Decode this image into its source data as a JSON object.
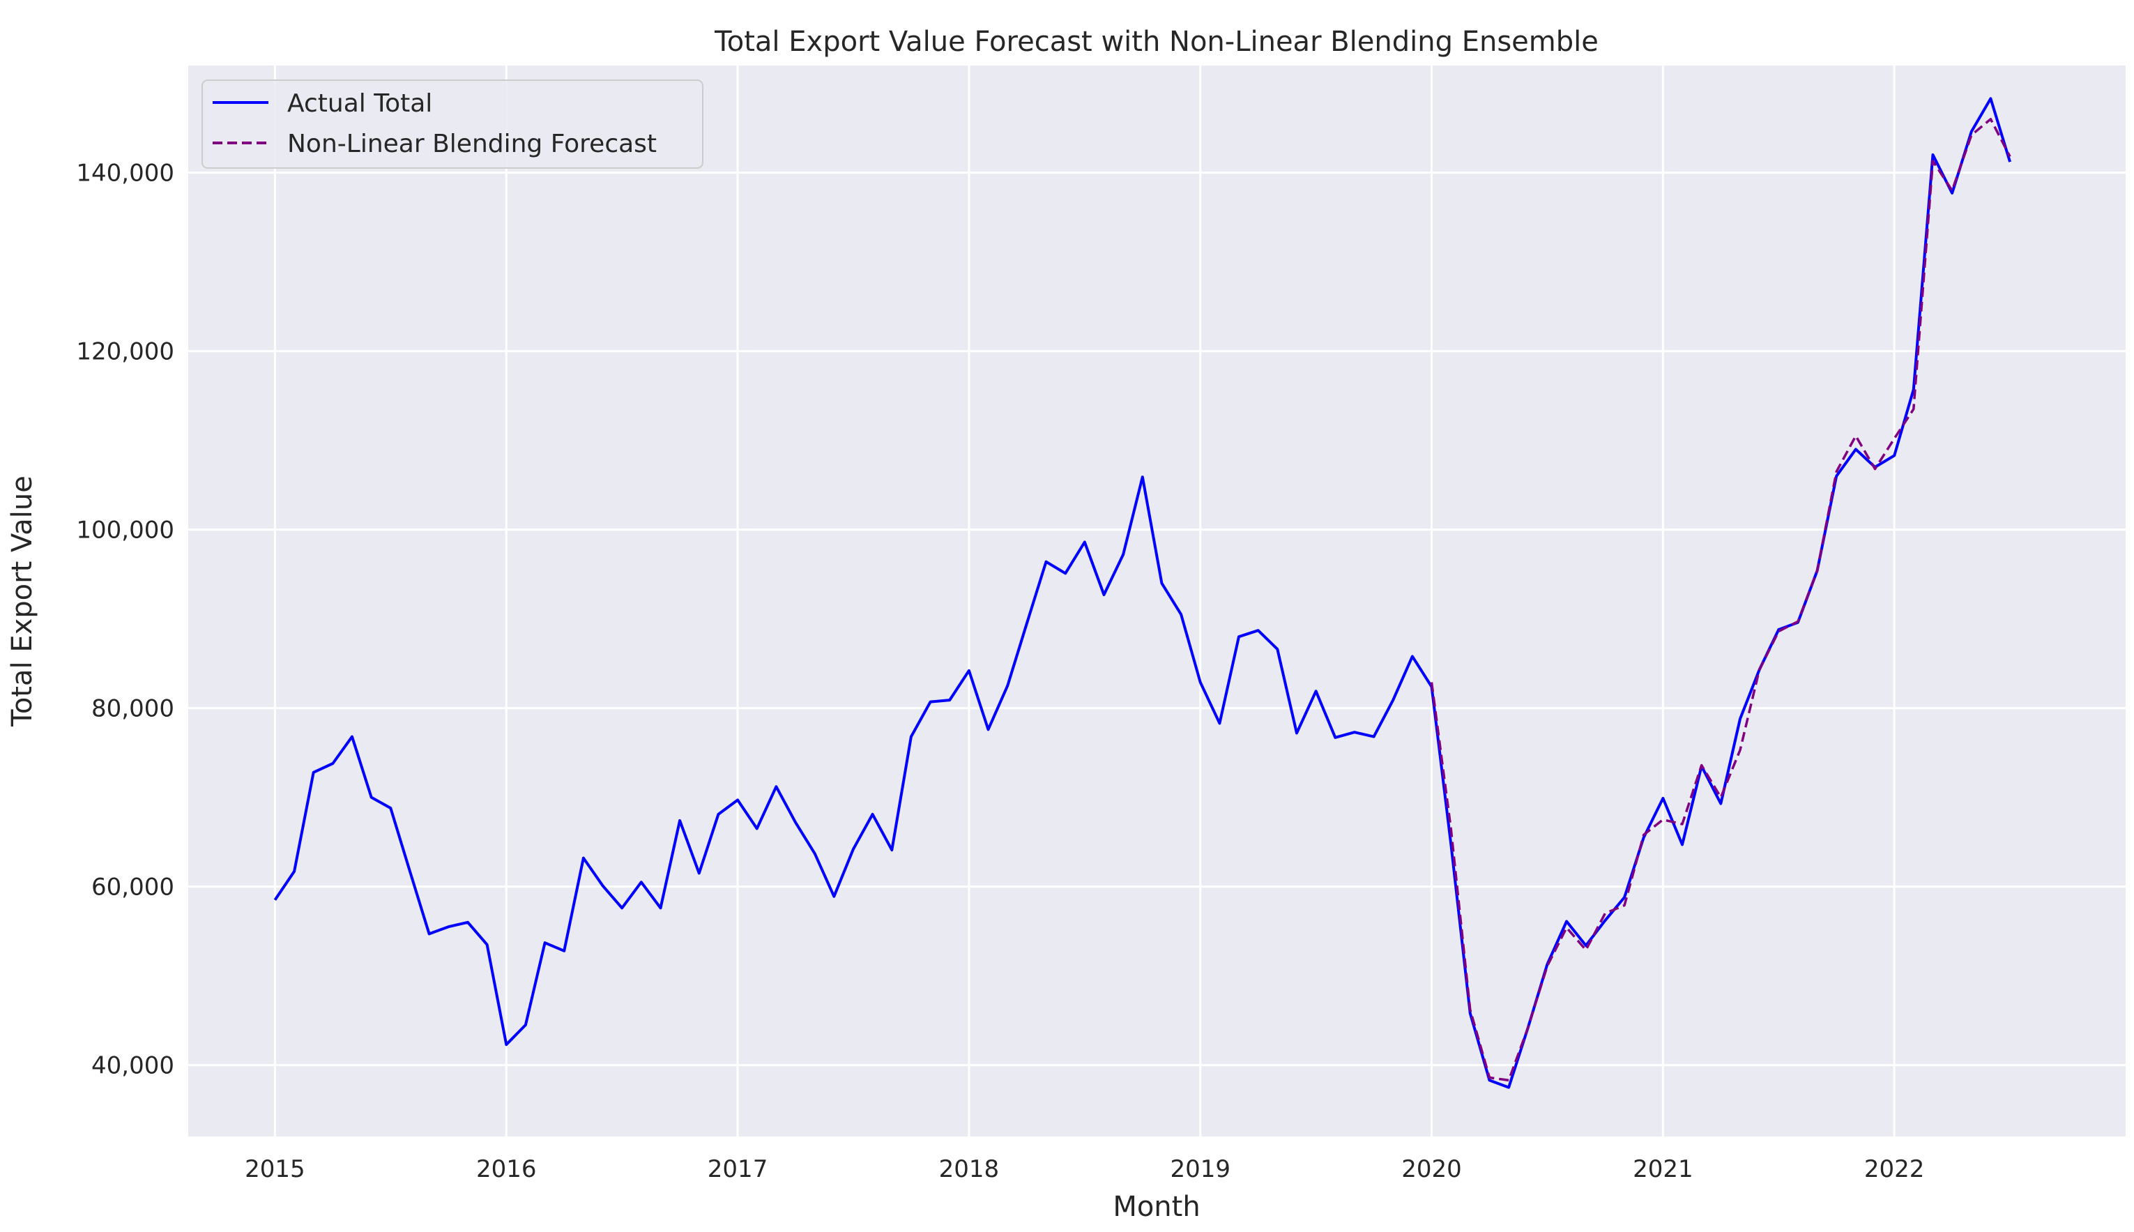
{
  "chart_data": {
    "type": "line",
    "title": "Total Export Value Forecast with Non-Linear Blending Ensemble",
    "xlabel": "Month",
    "ylabel": "Total Export Value",
    "xlim": [
      2014.625,
      2023.0
    ],
    "ylim": [
      32000,
      152000
    ],
    "x_ticks": [
      2015,
      2016,
      2017,
      2018,
      2019,
      2020,
      2021,
      2022
    ],
    "x_tick_labels": [
      "2015",
      "2016",
      "2017",
      "2018",
      "2019",
      "2020",
      "2021",
      "2022"
    ],
    "y_ticks": [
      40000,
      60000,
      80000,
      100000,
      120000,
      140000
    ],
    "y_tick_labels": [
      "40,000",
      "60,000",
      "80,000",
      "100,000",
      "120,000",
      "140,000"
    ],
    "grid": true,
    "legend_position": "top-left",
    "colors": {
      "background": "#eaeaf2",
      "grid": "#ffffff",
      "actual": "#0000ff",
      "forecast": "#800080"
    },
    "series": [
      {
        "name": "Actual Total",
        "style": "solid",
        "start": "2015-01",
        "values": [
          58500,
          61700,
          72800,
          73800,
          76800,
          70000,
          68800,
          61700,
          54700,
          55500,
          56000,
          53500,
          42300,
          44500,
          53700,
          52800,
          63200,
          60100,
          57600,
          60500,
          57600,
          67400,
          61500,
          68100,
          69700,
          66500,
          71200,
          67200,
          63700,
          58900,
          64200,
          68100,
          64100,
          76800,
          80700,
          80900,
          84200,
          77600,
          82500,
          89500,
          96400,
          95100,
          98600,
          92700,
          97200,
          105900,
          94000,
          90500,
          82900,
          78300,
          88000,
          88700,
          86600,
          77200,
          81900,
          76700,
          77300,
          76800,
          80900,
          85800,
          82400,
          64800,
          45800,
          38300,
          37500,
          44200,
          51300,
          56100,
          53400,
          56200,
          58800,
          65500,
          69900,
          64700,
          73500,
          69300,
          78800,
          84300,
          88800,
          89600,
          95400,
          106000,
          109000,
          107000,
          108300,
          115700,
          142000,
          137700,
          144600,
          148300,
          141200
        ]
      },
      {
        "name": "Non-Linear Blending Forecast",
        "style": "dashed",
        "start": "2020-01",
        "values": [
          82900,
          66500,
          46200,
          38600,
          38300,
          44200,
          51100,
          55400,
          52900,
          57000,
          57900,
          65800,
          67500,
          67000,
          73600,
          70000,
          75300,
          84300,
          88600,
          89700,
          95400,
          106500,
          110500,
          106800,
          110200,
          113500,
          141300,
          138000,
          144200,
          146000,
          141800
        ]
      }
    ]
  }
}
